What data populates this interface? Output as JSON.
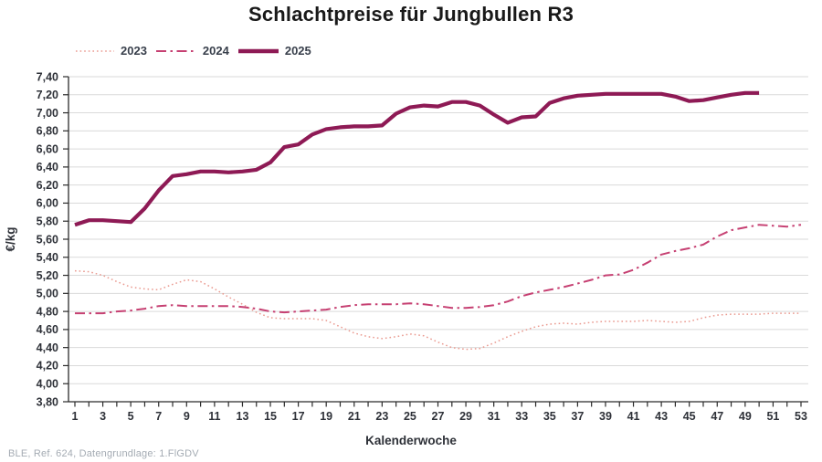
{
  "title": "Schlachtpreise für Jungbullen R3",
  "footer": "BLE, Ref. 624, Datengrundlage: 1.FlGDV",
  "colors": {
    "grid": "#dadada",
    "axis": "#2b2b2b",
    "tick_text": "#2e3138",
    "title_text": "#191919",
    "footer_text": "#a4abb3"
  },
  "chart_data": {
    "type": "line",
    "title": "Schlachtpreise für Jungbullen R3",
    "xlabel": "Kalenderwoche",
    "ylabel": "€/kg",
    "ylim": [
      3.8,
      7.4
    ],
    "y_tick_step": 0.2,
    "y_tick_labels": [
      "3,80",
      "4,00",
      "4,20",
      "4,40",
      "4,60",
      "4,80",
      "5,00",
      "5,20",
      "5,40",
      "5,60",
      "5,80",
      "6,00",
      "6,20",
      "6,40",
      "6,60",
      "6,80",
      "7,00",
      "7,20",
      "7,40"
    ],
    "x_range": [
      1,
      53
    ],
    "x_tick_labels": [
      1,
      3,
      5,
      7,
      9,
      11,
      13,
      15,
      17,
      19,
      21,
      23,
      25,
      27,
      29,
      31,
      33,
      35,
      37,
      39,
      41,
      43,
      45,
      47,
      49,
      51,
      53
    ],
    "grid": "horizontal",
    "legend_position": "top-left",
    "x": [
      1,
      2,
      3,
      4,
      5,
      6,
      7,
      8,
      9,
      10,
      11,
      12,
      13,
      14,
      15,
      16,
      17,
      18,
      19,
      20,
      21,
      22,
      23,
      24,
      25,
      26,
      27,
      28,
      29,
      30,
      31,
      32,
      33,
      34,
      35,
      36,
      37,
      38,
      39,
      40,
      41,
      42,
      43,
      44,
      45,
      46,
      47,
      48,
      49,
      50,
      51,
      52,
      53
    ],
    "series": [
      {
        "name": "2023",
        "color": "#ea9a90",
        "style": "dotted",
        "stroke_width": 1.5,
        "dasharray": "1.6 3",
        "values": [
          5.25,
          5.24,
          5.2,
          5.13,
          5.07,
          5.05,
          5.04,
          5.1,
          5.15,
          5.13,
          5.05,
          4.96,
          4.88,
          4.79,
          4.73,
          4.72,
          4.72,
          4.72,
          4.7,
          4.63,
          4.56,
          4.52,
          4.5,
          4.52,
          4.55,
          4.53,
          4.46,
          4.4,
          4.38,
          4.39,
          4.45,
          4.52,
          4.58,
          4.63,
          4.66,
          4.67,
          4.66,
          4.68,
          4.69,
          4.69,
          4.69,
          4.7,
          4.69,
          4.68,
          4.69,
          4.73,
          4.76,
          4.77,
          4.77,
          4.77,
          4.78,
          4.78,
          4.78
        ]
      },
      {
        "name": "2024",
        "color": "#c64072",
        "style": "dashdot",
        "stroke_width": 2,
        "dasharray": "11 4.5 2.5 4.5",
        "values": [
          4.78,
          4.78,
          4.78,
          4.8,
          4.81,
          4.83,
          4.86,
          4.87,
          4.86,
          4.86,
          4.86,
          4.86,
          4.85,
          4.83,
          4.8,
          4.79,
          4.8,
          4.81,
          4.82,
          4.85,
          4.87,
          4.88,
          4.88,
          4.88,
          4.89,
          4.88,
          4.86,
          4.84,
          4.84,
          4.85,
          4.87,
          4.91,
          4.97,
          5.01,
          5.04,
          5.07,
          5.11,
          5.15,
          5.2,
          5.21,
          5.26,
          5.34,
          5.43,
          5.47,
          5.5,
          5.54,
          5.63,
          5.7,
          5.73,
          5.76,
          5.75,
          5.74,
          5.76
        ]
      },
      {
        "name": "2025",
        "color": "#8e1a55",
        "style": "solid",
        "stroke_width": 4.2,
        "dasharray": "",
        "values": [
          5.76,
          5.81,
          5.81,
          5.8,
          5.79,
          5.94,
          6.14,
          6.3,
          6.32,
          6.35,
          6.35,
          6.34,
          6.35,
          6.37,
          6.45,
          6.62,
          6.65,
          6.76,
          6.82,
          6.84,
          6.85,
          6.85,
          6.86,
          6.99,
          7.06,
          7.08,
          7.07,
          7.12,
          7.12,
          7.08,
          6.98,
          6.89,
          6.95,
          6.96,
          7.11,
          7.16,
          7.19,
          7.2,
          7.21,
          7.21,
          7.21,
          7.21,
          7.21,
          7.18,
          7.13,
          7.14,
          7.17,
          7.2,
          7.22,
          7.22
        ]
      }
    ]
  }
}
